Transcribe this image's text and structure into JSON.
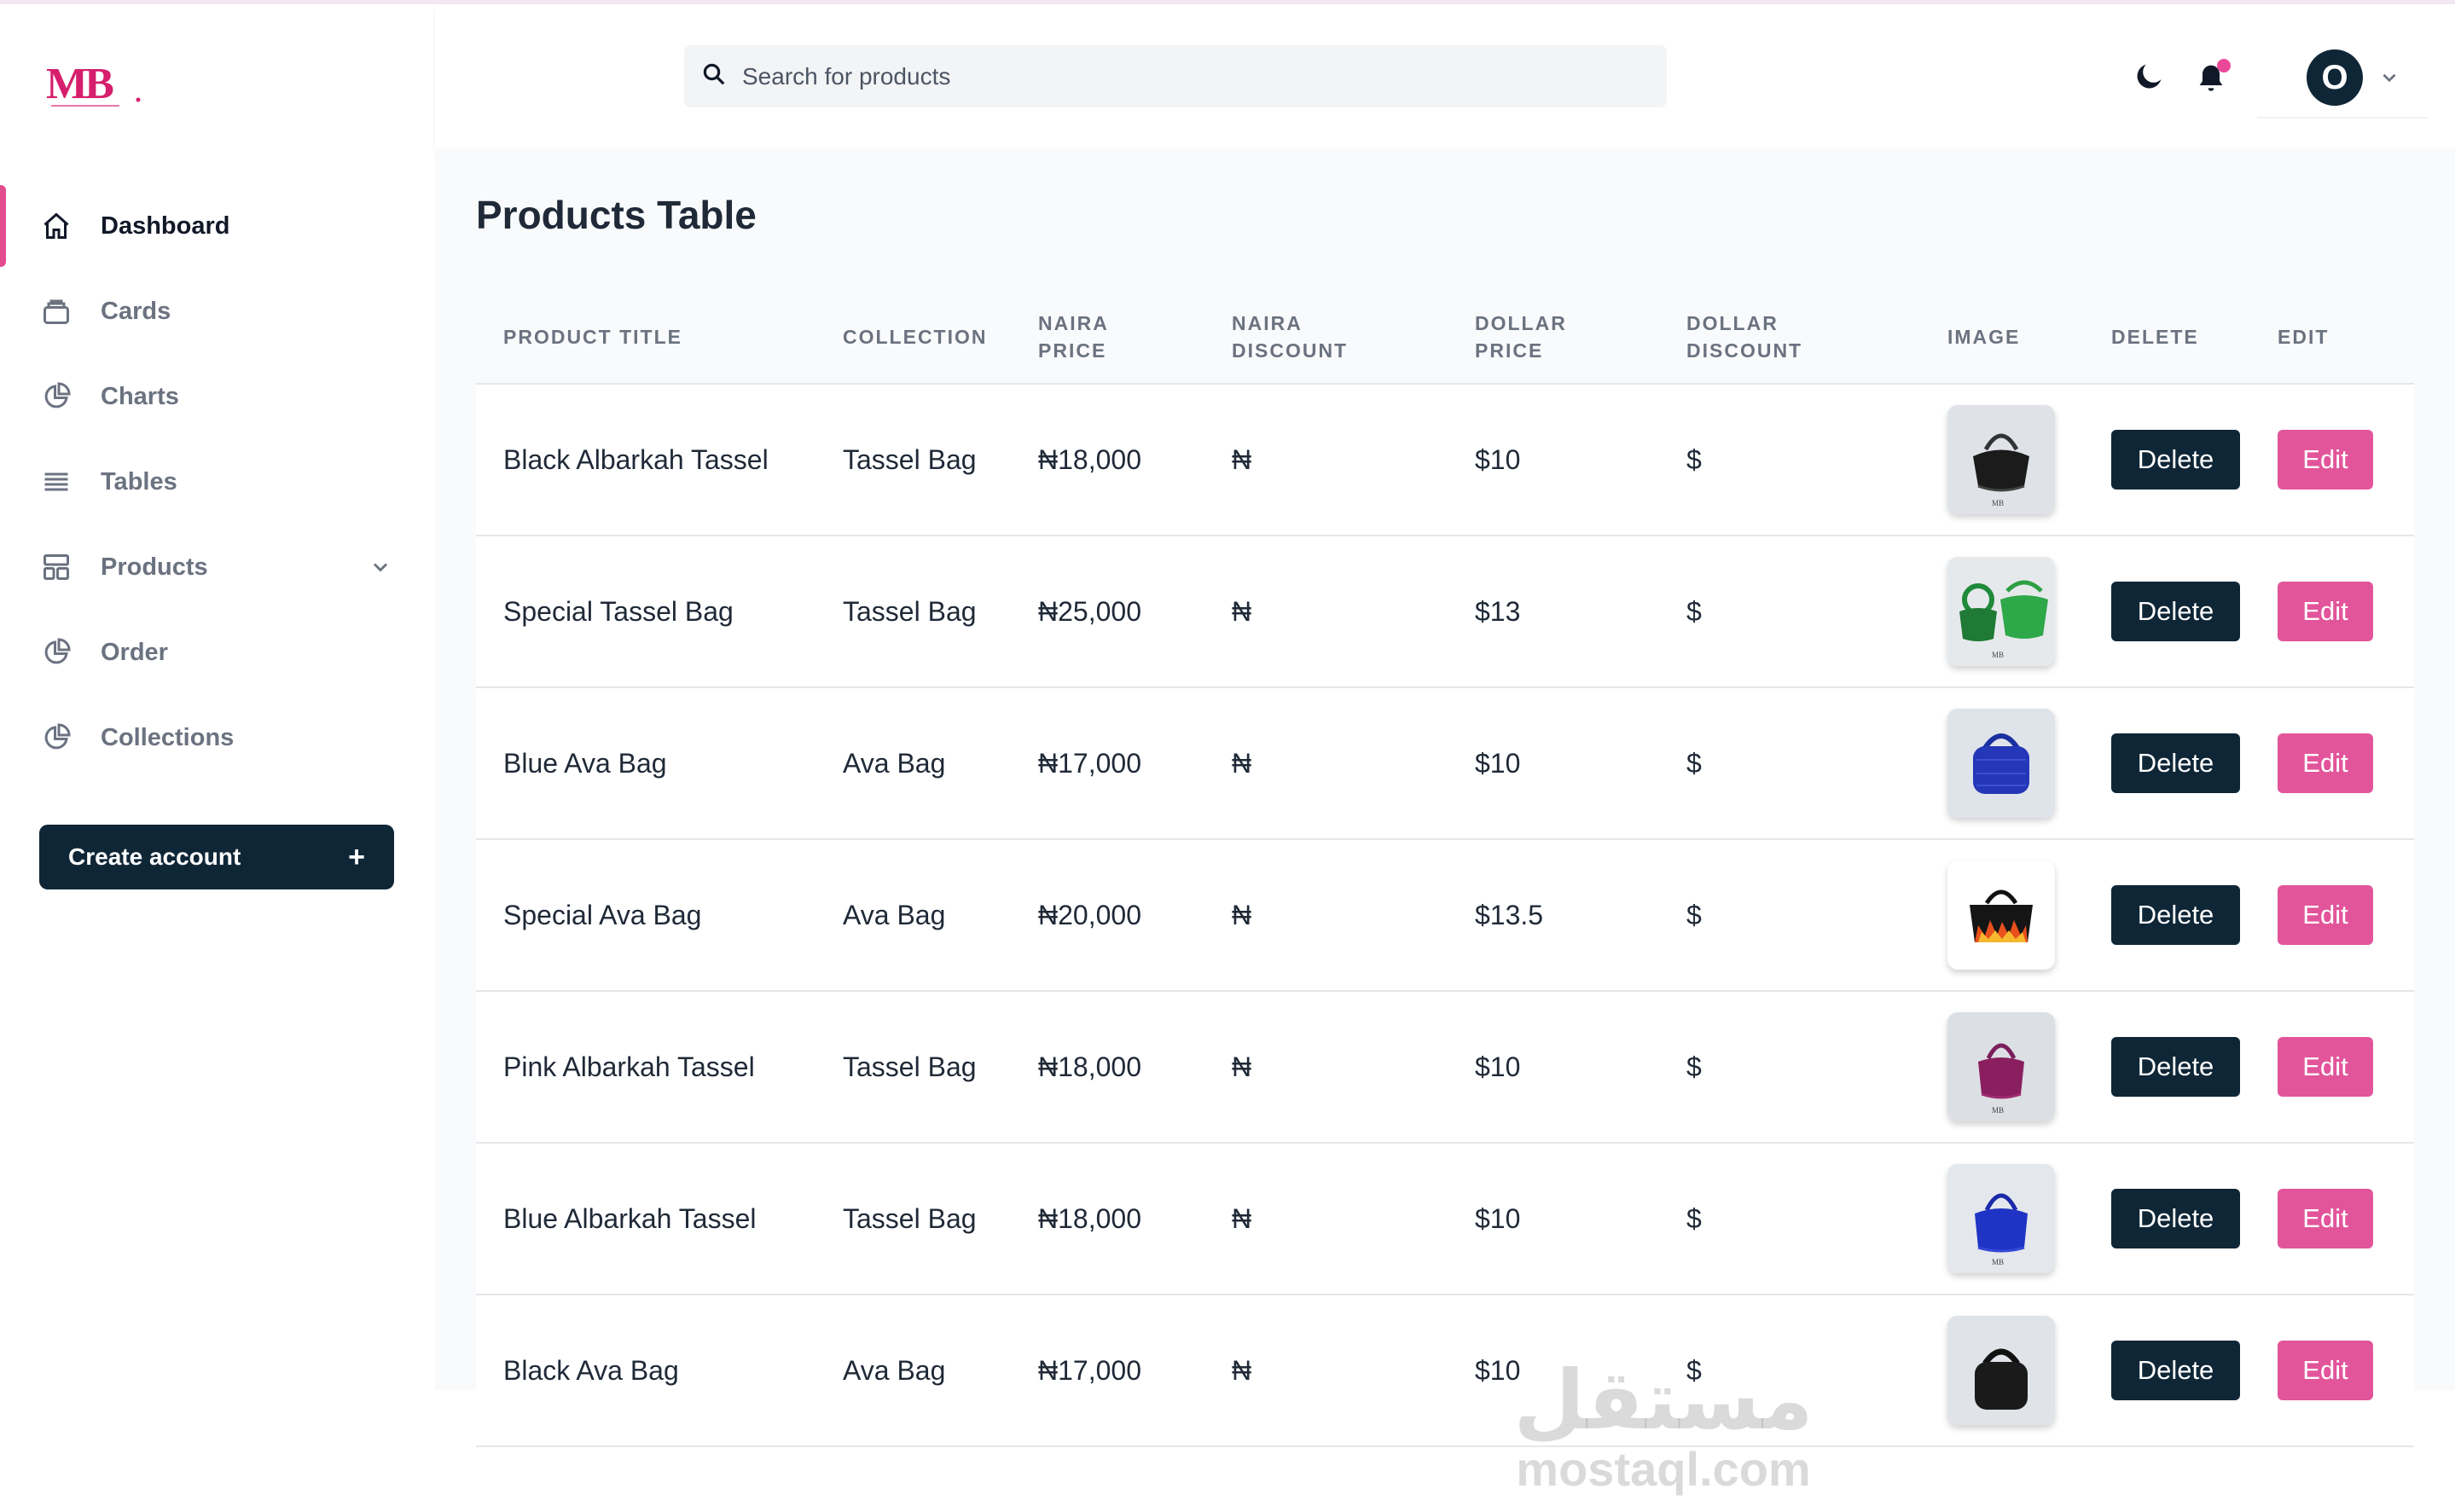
{
  "brand": {
    "logo_text": "MB"
  },
  "search": {
    "placeholder": "Search for products"
  },
  "header": {
    "avatar_initial": "O"
  },
  "sidebar": {
    "items": [
      {
        "label": "Dashboard",
        "icon": "home-icon",
        "active": true
      },
      {
        "label": "Cards",
        "icon": "cards-icon"
      },
      {
        "label": "Charts",
        "icon": "pie-chart-icon"
      },
      {
        "label": "Tables",
        "icon": "list-icon"
      },
      {
        "label": "Products",
        "icon": "grid-icon",
        "has_submenu": true
      },
      {
        "label": "Order",
        "icon": "pie-chart-icon"
      },
      {
        "label": "Collections",
        "icon": "pie-chart-icon"
      }
    ],
    "create_account": {
      "label": "Create account",
      "icon": "+"
    }
  },
  "main": {
    "title": "Products Table",
    "columns": [
      "PRODUCT TITLE",
      "COLLECTION",
      "NAIRA PRICE",
      "NAIRA DISCOUNT",
      "DOLLAR PRICE",
      "DOLLAR DISCOUNT",
      "IMAGE",
      "DELETE",
      "EDIT"
    ],
    "rows": [
      {
        "title": "Black Albarkah Tassel",
        "collection": "Tassel Bag",
        "naira_price": "₦18,000",
        "naira_discount": "₦",
        "dollar_price": "$10",
        "dollar_discount": "$",
        "image": "black-tassel-bag",
        "delete": "Delete",
        "edit": "Edit"
      },
      {
        "title": "Special Tassel Bag",
        "collection": "Tassel Bag",
        "naira_price": "₦25,000",
        "naira_discount": "₦",
        "dollar_price": "$13",
        "dollar_discount": "$",
        "image": "green-tassel-bag",
        "delete": "Delete",
        "edit": "Edit"
      },
      {
        "title": "Blue Ava Bag",
        "collection": "Ava Bag",
        "naira_price": "₦17,000",
        "naira_discount": "₦",
        "dollar_price": "$10",
        "dollar_discount": "$",
        "image": "blue-ava-bag",
        "delete": "Delete",
        "edit": "Edit"
      },
      {
        "title": "Special Ava Bag",
        "collection": "Ava Bag",
        "naira_price": "₦20,000",
        "naira_discount": "₦",
        "dollar_price": "$13.5",
        "dollar_discount": "$",
        "image": "flame-ava-bag",
        "delete": "Delete",
        "edit": "Edit"
      },
      {
        "title": "Pink Albarkah Tassel",
        "collection": "Tassel Bag",
        "naira_price": "₦18,000",
        "naira_discount": "₦",
        "dollar_price": "$10",
        "dollar_discount": "$",
        "image": "pink-tassel-bag",
        "delete": "Delete",
        "edit": "Edit"
      },
      {
        "title": "Blue Albarkah Tassel",
        "collection": "Tassel Bag",
        "naira_price": "₦18,000",
        "naira_discount": "₦",
        "dollar_price": "$10",
        "dollar_discount": "$",
        "image": "blue-tassel-bag",
        "delete": "Delete",
        "edit": "Edit"
      },
      {
        "title": "Black Ava Bag",
        "collection": "Ava Bag",
        "naira_price": "₦17,000",
        "naira_discount": "₦",
        "dollar_price": "$10",
        "dollar_discount": "$",
        "image": "black-ava-bag",
        "delete": "Delete",
        "edit": "Edit"
      }
    ]
  },
  "watermark": {
    "arabic": "مستقل",
    "latin": "mostaql.com"
  },
  "colors": {
    "primary_dark": "#0f2637",
    "accent_pink": "#e2559a",
    "notification_dot": "#ec4899"
  }
}
